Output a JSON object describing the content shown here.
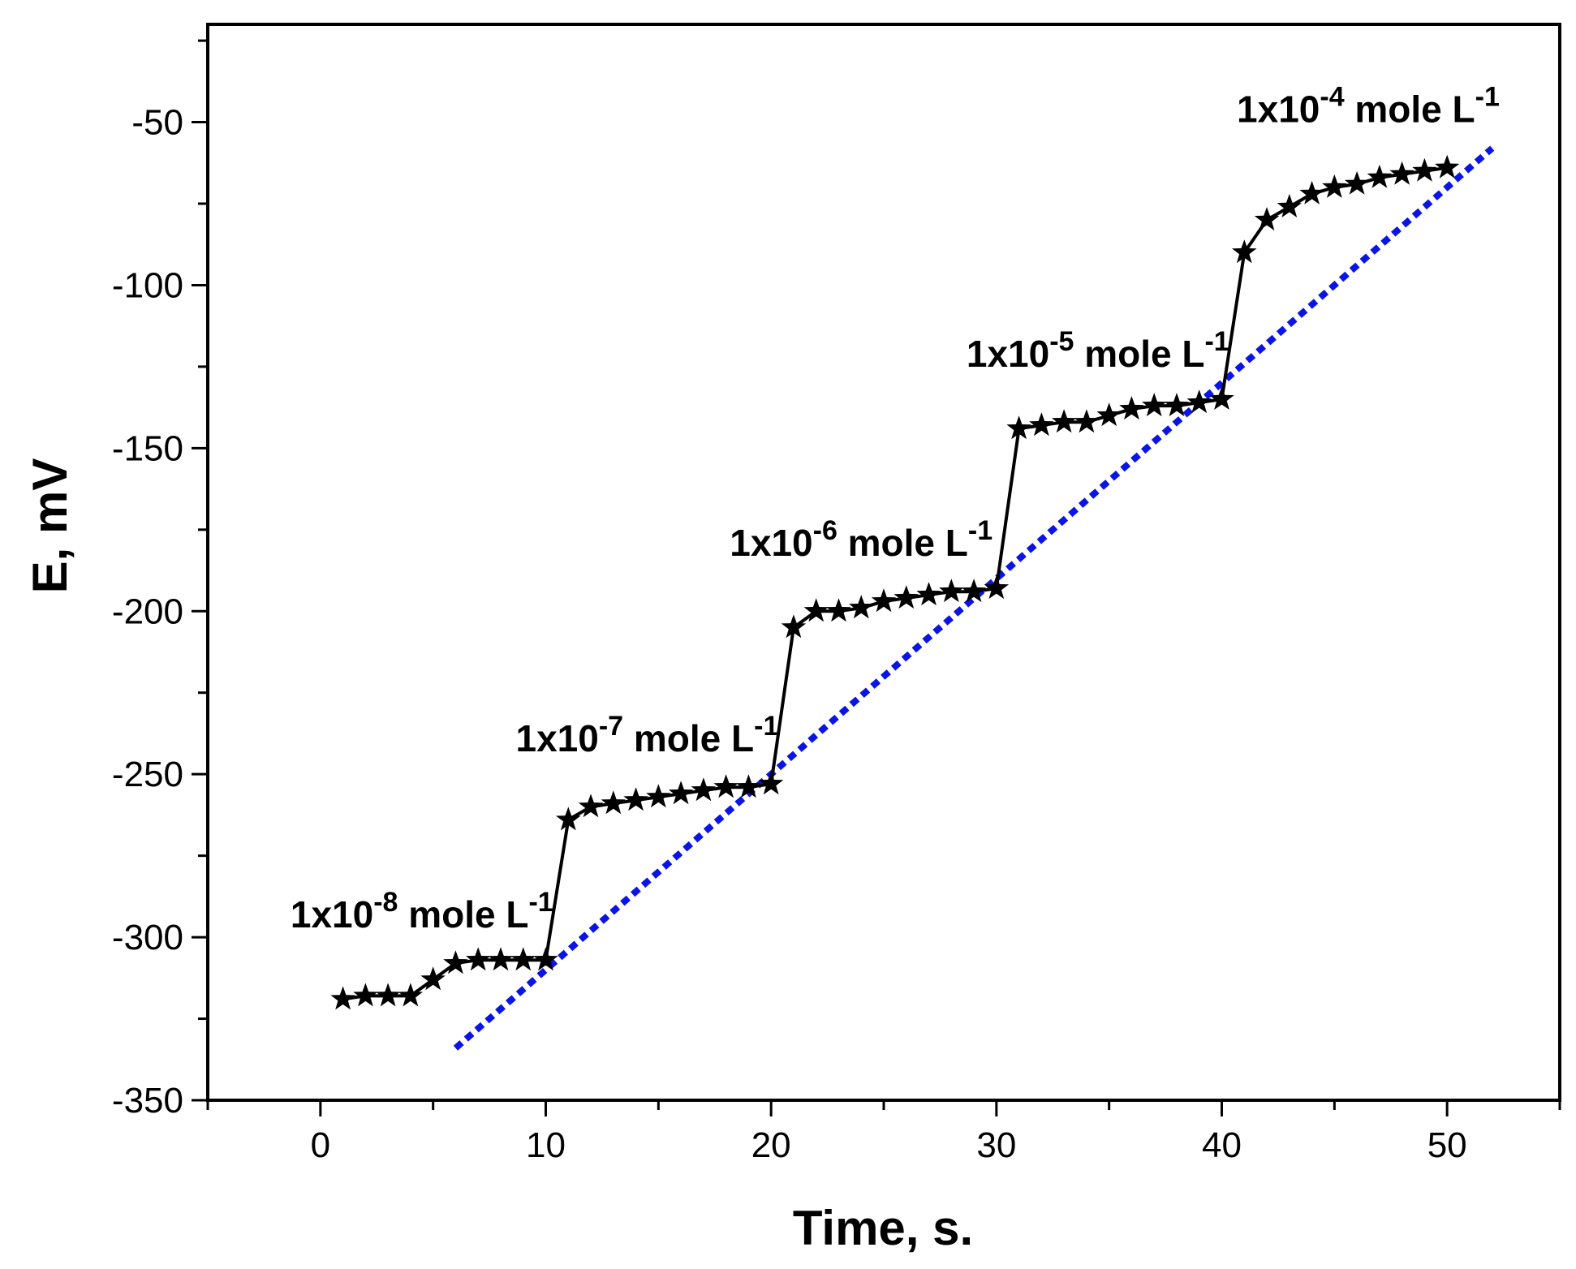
{
  "chart_data": {
    "type": "line",
    "title": "",
    "xlabel": "Time, s.",
    "ylabel": "E, mV",
    "xlim": [
      -5,
      55
    ],
    "ylim": [
      -350,
      -20
    ],
    "xticks": [
      0,
      10,
      20,
      30,
      40,
      50
    ],
    "yticks": [
      -350,
      -300,
      -250,
      -200,
      -150,
      -100,
      -50
    ],
    "grid": false,
    "colors": {
      "data": "#000000",
      "fit": "#0a14e6",
      "axis": "#000000"
    },
    "series": [
      {
        "name": "Potential response",
        "marker": "star",
        "x": [
          1,
          2,
          3,
          4,
          5,
          6,
          7,
          8,
          9,
          10,
          11,
          12,
          13,
          14,
          15,
          16,
          17,
          18,
          19,
          20,
          21,
          22,
          23,
          24,
          25,
          26,
          27,
          28,
          29,
          30,
          31,
          32,
          33,
          34,
          35,
          36,
          37,
          38,
          39,
          40,
          41,
          42,
          43,
          44,
          45,
          46,
          47,
          48,
          49,
          50
        ],
        "y": [
          -319,
          -318,
          -318,
          -318,
          -313,
          -308,
          -307,
          -307,
          -307,
          -307,
          -264,
          -260,
          -259,
          -258,
          -257,
          -256,
          -255,
          -254,
          -254,
          -253,
          -205,
          -200,
          -200,
          -199,
          -197,
          -196,
          -195,
          -194,
          -194,
          -193,
          -144,
          -143,
          -142,
          -142,
          -140,
          -138,
          -137,
          -137,
          -136,
          -135,
          -90,
          -80,
          -76,
          -72,
          -70,
          -69,
          -67,
          -66,
          -65,
          -64
        ]
      },
      {
        "name": "Linear trend",
        "style": "dotted",
        "x": [
          6,
          52
        ],
        "y": [
          -334,
          -58
        ]
      }
    ],
    "annotations": [
      {
        "base": "1x10",
        "exp": "-8",
        "unit": " mole L",
        "unit_exp": "-1",
        "x": 4.5,
        "y": -297
      },
      {
        "base": "1x10",
        "exp": "-7",
        "unit": " mole L",
        "unit_exp": "-1",
        "x": 14.5,
        "y": -243
      },
      {
        "base": "1x10",
        "exp": "-6",
        "unit": " mole L",
        "unit_exp": "-1",
        "x": 24,
        "y": -183
      },
      {
        "base": "1x10",
        "exp": "-5",
        "unit": " mole L",
        "unit_exp": "-1",
        "x": 34.5,
        "y": -125
      },
      {
        "base": "1x10",
        "exp": "-4",
        "unit": " mole L",
        "unit_exp": "-1",
        "x": 46.5,
        "y": -50
      }
    ]
  }
}
